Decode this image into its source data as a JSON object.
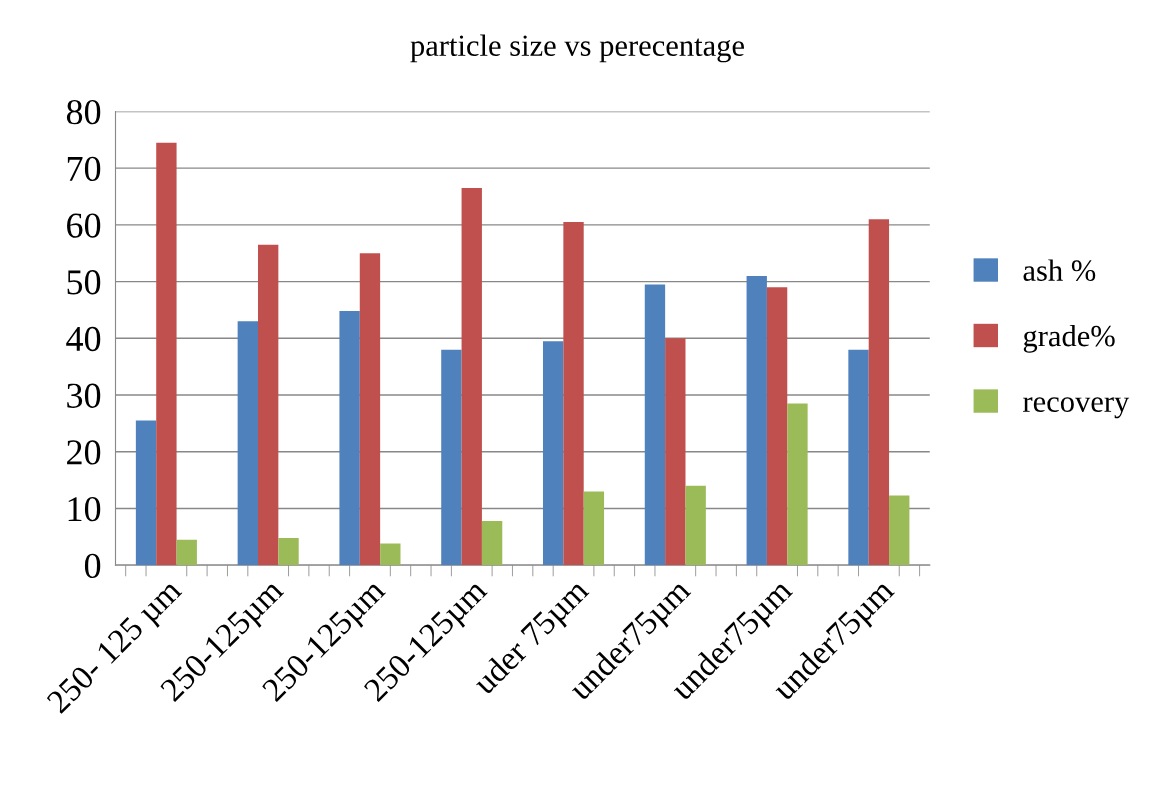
{
  "chart_data": {
    "type": "bar",
    "title": "particle size vs perecentage",
    "categories": [
      "250- 125 µm",
      "250-125µm",
      "250-125µm",
      "250-125µm",
      "uder 75µm",
      "under75µm",
      "under75µm",
      "under75µm"
    ],
    "series": [
      {
        "name": "ash %",
        "color": "#4f81bd",
        "values": [
          25.5,
          43,
          44.8,
          38,
          39.5,
          49.5,
          51,
          38
        ]
      },
      {
        "name": "grade%",
        "color": "#c0504d",
        "values": [
          74.5,
          56.5,
          55,
          66.5,
          60.5,
          40,
          49,
          61
        ]
      },
      {
        "name": "recovery",
        "color": "#9bbb59",
        "values": [
          4.5,
          4.8,
          3.8,
          7.8,
          13,
          14,
          28.5,
          12.3
        ]
      }
    ],
    "ylim": [
      0,
      80
    ],
    "yticks": [
      0,
      10,
      20,
      30,
      40,
      50,
      60,
      70,
      80
    ],
    "grid": "y",
    "legend": "right"
  }
}
